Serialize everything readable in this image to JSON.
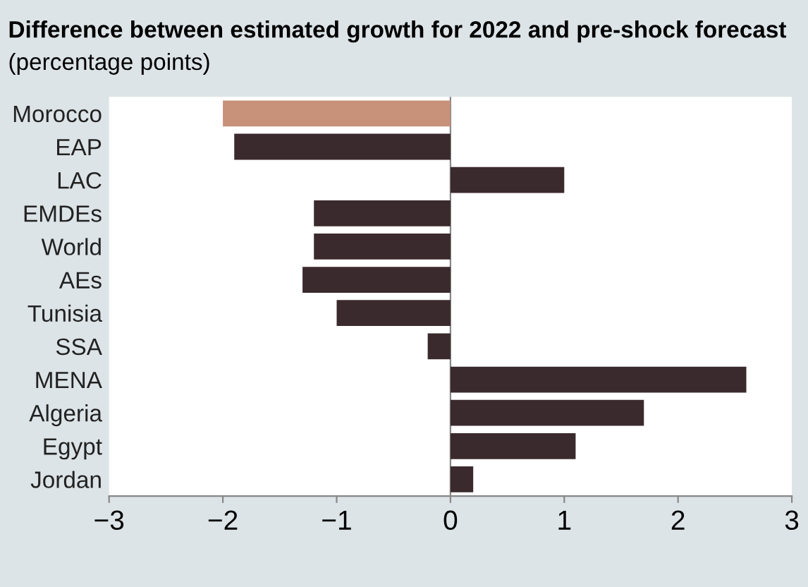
{
  "chart_data": {
    "type": "bar",
    "orientation": "horizontal",
    "title": "Difference between estimated growth for 2022 and pre-shock forecast",
    "subtitle": "(percentage points)",
    "categories": [
      "Morocco",
      "EAP",
      "LAC",
      "EMDEs",
      "World",
      "AEs",
      "Tunisia",
      "SSA",
      "MENA",
      "Algeria",
      "Egypt",
      "Jordan"
    ],
    "values": [
      -2.0,
      -1.9,
      1.0,
      -1.2,
      -1.2,
      -1.3,
      -1.0,
      -0.2,
      2.6,
      1.7,
      1.1,
      0.2
    ],
    "colors": [
      "#c8917a",
      "#3b2a2d",
      "#3b2a2d",
      "#3b2a2d",
      "#3b2a2d",
      "#3b2a2d",
      "#3b2a2d",
      "#3b2a2d",
      "#3b2a2d",
      "#3b2a2d",
      "#3b2a2d",
      "#3b2a2d"
    ],
    "xlim": [
      -3,
      3
    ],
    "xticks": [
      {
        "value": -3,
        "label": "−3"
      },
      {
        "value": -2,
        "label": "−2"
      },
      {
        "value": -1,
        "label": "−1"
      },
      0,
      1,
      2,
      3
    ],
    "ref_lines": [
      {
        "axis": "x",
        "value": 0,
        "color": "#888888"
      }
    ]
  }
}
